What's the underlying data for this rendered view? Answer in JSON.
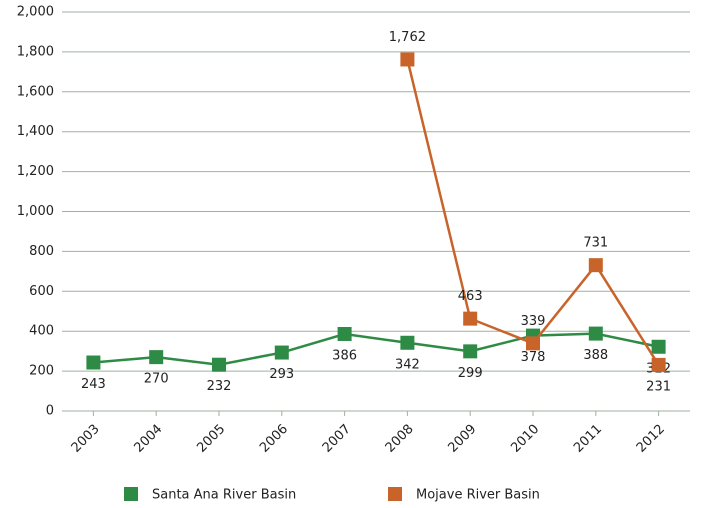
{
  "chart_data": {
    "type": "line",
    "categories": [
      "2003",
      "2004",
      "2005",
      "2006",
      "2007",
      "2008",
      "2009",
      "2010",
      "2011",
      "2012"
    ],
    "series": [
      {
        "name": "Santa Ana River Basin",
        "color": "#2e8b45",
        "values": [
          243,
          270,
          232,
          293,
          386,
          342,
          299,
          378,
          388,
          322
        ]
      },
      {
        "name": "Mojave River Basin",
        "color": "#c8642a",
        "values": [
          null,
          null,
          null,
          null,
          null,
          1762,
          463,
          339,
          731,
          231
        ],
        "value_labels": [
          null,
          null,
          null,
          null,
          null,
          "1,762",
          "463",
          "339",
          "731",
          "231"
        ]
      }
    ],
    "ylim": [
      0,
      2000
    ],
    "yticks": [
      0,
      200,
      400,
      600,
      800,
      {
        "value": 1000,
        "label": "1,000"
      },
      {
        "value": 1200,
        "label": "1,200"
      },
      {
        "value": 1400,
        "label": "1,400"
      },
      {
        "value": 1600,
        "label": "1,600"
      },
      {
        "value": 1800,
        "label": "1,800"
      },
      {
        "value": 2000,
        "label": "2,000"
      }
    ],
    "grid": true,
    "legend": "bottom"
  }
}
